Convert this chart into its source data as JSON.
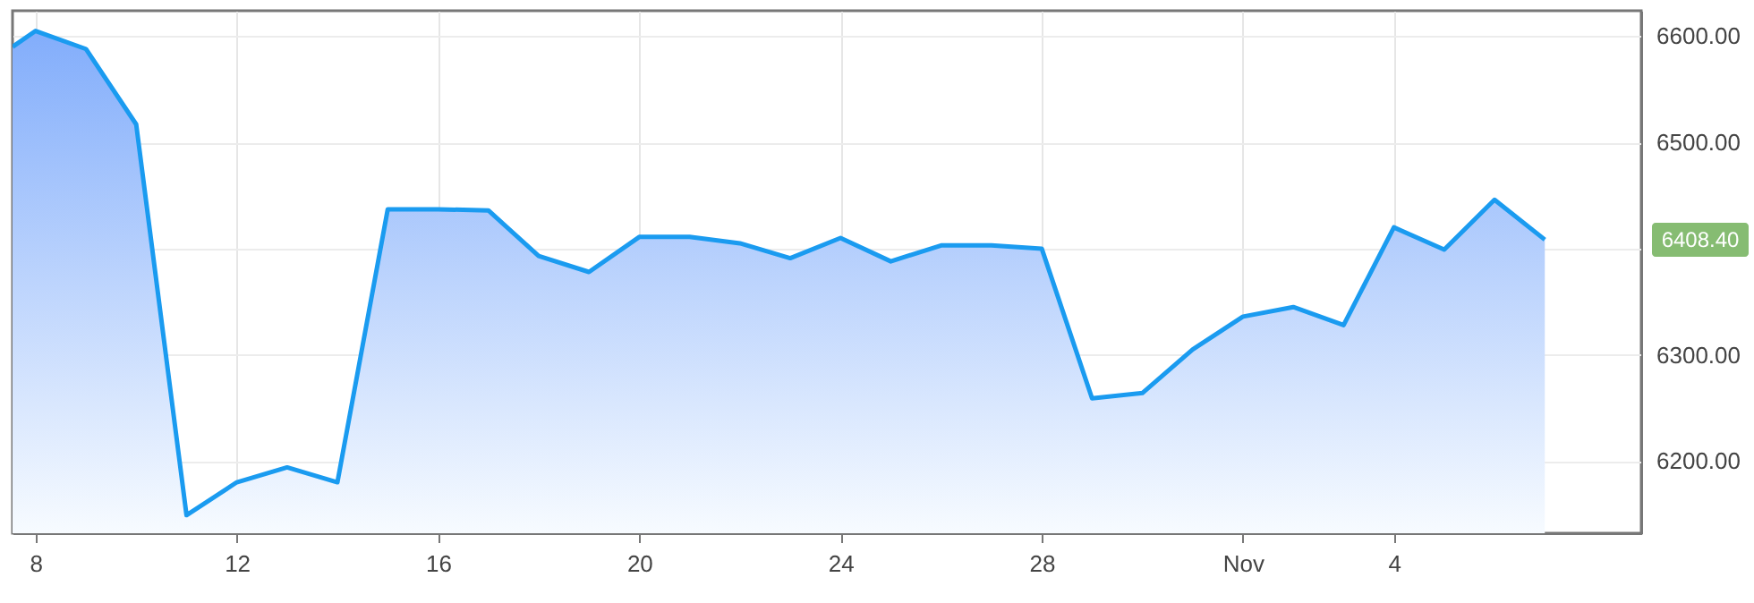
{
  "chart_data": {
    "type": "area",
    "x": [
      "--10-07T13:00",
      "--10-08",
      "--10-09",
      "--10-10",
      "--10-11",
      "--10-12",
      "--10-13",
      "--10-14",
      "--10-15",
      "--10-16",
      "--10-17",
      "--10-18",
      "--10-19",
      "--10-20",
      "--10-21",
      "--10-22",
      "--10-23",
      "--10-24",
      "--10-25",
      "--10-26",
      "--10-27",
      "--10-28",
      "--10-29",
      "--10-30",
      "--10-31",
      "--11-01",
      "--11-02",
      "--11-03",
      "--11-04",
      "--11-05",
      "--11-06",
      "--11-07"
    ],
    "series": [
      {
        "color": "#1a9bf0",
        "values": [
          6590,
          6605,
          6588,
          6517,
          6149,
          6180,
          6194,
          6180,
          6437,
          6437,
          6436,
          6393,
          6378,
          6411,
          6411,
          6405,
          6391,
          6410,
          6388,
          6403,
          6403,
          6400,
          6259,
          6264,
          6305,
          6336,
          6345,
          6328,
          6420,
          6399,
          6446,
          6408.4
        ]
      }
    ],
    "xlim": [
      "--10-07T13:00",
      "--11-08T22:00"
    ],
    "xticks": [
      {
        "value": "--10-08",
        "label": "8"
      },
      {
        "value": "--10-12",
        "label": "12"
      },
      {
        "value": "--10-16",
        "label": "16"
      },
      {
        "value": "--10-20",
        "label": "20"
      },
      {
        "value": "--10-24",
        "label": "24"
      },
      {
        "value": "--10-28",
        "label": "28"
      },
      {
        "value": "--11-01",
        "label": "Nov"
      },
      {
        "value": "--11-04",
        "label": "4"
      }
    ],
    "ylim": [
      6132,
      6624
    ],
    "yticks": [
      {
        "value": 6200,
        "label": "6200.00"
      },
      {
        "value": 6300,
        "label": "6300.00"
      },
      {
        "value": 6400,
        "label": null
      },
      {
        "value": 6500,
        "label": "6500.00"
      },
      {
        "value": 6600,
        "label": "6600.00"
      }
    ],
    "annotations": [
      "6408.40"
    ],
    "grid": true,
    "line_style": "solid",
    "marker": "none"
  }
}
